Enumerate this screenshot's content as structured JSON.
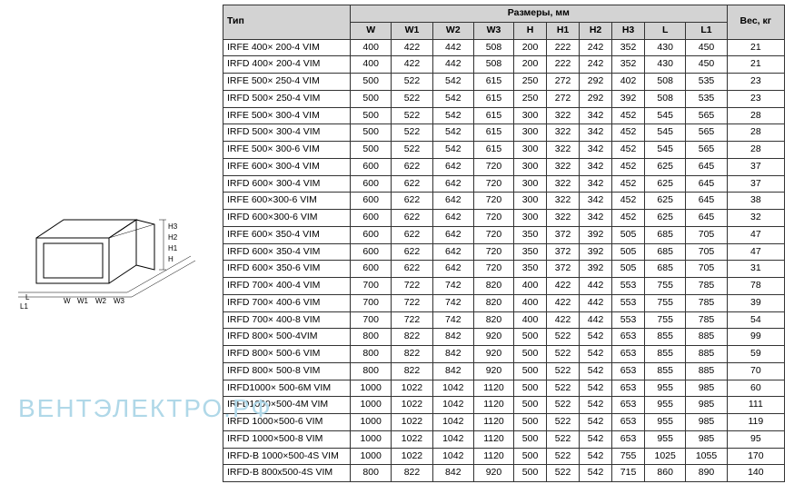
{
  "headers": {
    "type": "Тип",
    "dimensions": "Размеры, мм",
    "weight": "Вес, кг",
    "cols": [
      "W",
      "W1",
      "W2",
      "W3",
      "H",
      "H1",
      "H2",
      "H3",
      "L",
      "L1"
    ]
  },
  "rows": [
    {
      "type": "IRFE 400× 200-4 VIM",
      "v": [
        "400",
        "422",
        "442",
        "508",
        "200",
        "222",
        "242",
        "352",
        "430",
        "450",
        "21"
      ]
    },
    {
      "type": "IRFD 400× 200-4 VIM",
      "v": [
        "400",
        "422",
        "442",
        "508",
        "200",
        "222",
        "242",
        "352",
        "430",
        "450",
        "21"
      ]
    },
    {
      "type": "IRFE 500× 250-4 VIM",
      "v": [
        "500",
        "522",
        "542",
        "615",
        "250",
        "272",
        "292",
        "402",
        "508",
        "535",
        "23"
      ]
    },
    {
      "type": "IRFD 500× 250-4 VIM",
      "v": [
        "500",
        "522",
        "542",
        "615",
        "250",
        "272",
        "292",
        "392",
        "508",
        "535",
        "23"
      ]
    },
    {
      "type": "IRFE 500× 300-4 VIM",
      "v": [
        "500",
        "522",
        "542",
        "615",
        "300",
        "322",
        "342",
        "452",
        "545",
        "565",
        "28"
      ]
    },
    {
      "type": "IRFD 500× 300-4 VIM",
      "v": [
        "500",
        "522",
        "542",
        "615",
        "300",
        "322",
        "342",
        "452",
        "545",
        "565",
        "28"
      ]
    },
    {
      "type": "IRFE 500× 300-6 VIM",
      "v": [
        "500",
        "522",
        "542",
        "615",
        "300",
        "322",
        "342",
        "452",
        "545",
        "565",
        "28"
      ]
    },
    {
      "type": "IRFE 600× 300-4 VIM",
      "v": [
        "600",
        "622",
        "642",
        "720",
        "300",
        "322",
        "342",
        "452",
        "625",
        "645",
        "37"
      ]
    },
    {
      "type": "IRFD 600× 300-4 VIM",
      "v": [
        "600",
        "622",
        "642",
        "720",
        "300",
        "322",
        "342",
        "452",
        "625",
        "645",
        "37"
      ]
    },
    {
      "type": "IRFE 600×300-6 VIM",
      "v": [
        "600",
        "622",
        "642",
        "720",
        "300",
        "322",
        "342",
        "452",
        "625",
        "645",
        "38"
      ]
    },
    {
      "type": "IRFD 600×300-6 VIM",
      "v": [
        "600",
        "622",
        "642",
        "720",
        "300",
        "322",
        "342",
        "452",
        "625",
        "645",
        "32"
      ]
    },
    {
      "type": "IRFE 600× 350-4 VIM",
      "v": [
        "600",
        "622",
        "642",
        "720",
        "350",
        "372",
        "392",
        "505",
        "685",
        "705",
        "47"
      ]
    },
    {
      "type": "IRFD 600× 350-4 VIM",
      "v": [
        "600",
        "622",
        "642",
        "720",
        "350",
        "372",
        "392",
        "505",
        "685",
        "705",
        "47"
      ]
    },
    {
      "type": "IRFD 600× 350-6 VIM",
      "v": [
        "600",
        "622",
        "642",
        "720",
        "350",
        "372",
        "392",
        "505",
        "685",
        "705",
        "31"
      ]
    },
    {
      "type": "IRFD 700× 400-4 VIM",
      "v": [
        "700",
        "722",
        "742",
        "820",
        "400",
        "422",
        "442",
        "553",
        "755",
        "785",
        "78"
      ]
    },
    {
      "type": "IRFD 700× 400-6 VIM",
      "v": [
        "700",
        "722",
        "742",
        "820",
        "400",
        "422",
        "442",
        "553",
        "755",
        "785",
        "39"
      ]
    },
    {
      "type": "IRFD 700× 400-8 VIM",
      "v": [
        "700",
        "722",
        "742",
        "820",
        "400",
        "422",
        "442",
        "553",
        "755",
        "785",
        "54"
      ]
    },
    {
      "type": "IRFD 800× 500-4VIM",
      "v": [
        "800",
        "822",
        "842",
        "920",
        "500",
        "522",
        "542",
        "653",
        "855",
        "885",
        "99"
      ]
    },
    {
      "type": "IRFD 800× 500-6 VIM",
      "v": [
        "800",
        "822",
        "842",
        "920",
        "500",
        "522",
        "542",
        "653",
        "855",
        "885",
        "59"
      ]
    },
    {
      "type": "IRFD 800× 500-8 VIM",
      "v": [
        "800",
        "822",
        "842",
        "920",
        "500",
        "522",
        "542",
        "653",
        "855",
        "885",
        "70"
      ]
    },
    {
      "type": "IRFD1000× 500-6M VIM",
      "v": [
        "1000",
        "1022",
        "1042",
        "1120",
        "500",
        "522",
        "542",
        "653",
        "955",
        "985",
        "60"
      ]
    },
    {
      "type": "IRFD1000×500-4M VIM",
      "v": [
        "1000",
        "1022",
        "1042",
        "1120",
        "500",
        "522",
        "542",
        "653",
        "955",
        "985",
        "111"
      ]
    },
    {
      "type": "IRFD 1000×500-6 VIM",
      "v": [
        "1000",
        "1022",
        "1042",
        "1120",
        "500",
        "522",
        "542",
        "653",
        "955",
        "985",
        "119"
      ]
    },
    {
      "type": "IRFD 1000×500-8 VIM",
      "v": [
        "1000",
        "1022",
        "1042",
        "1120",
        "500",
        "522",
        "542",
        "653",
        "955",
        "985",
        "95"
      ]
    },
    {
      "type": "IRFD-B 1000×500-4S VIM",
      "v": [
        "1000",
        "1022",
        "1042",
        "1120",
        "500",
        "522",
        "542",
        "755",
        "1025",
        "1055",
        "170"
      ]
    },
    {
      "type": "IRFD-B 800x500-4S VIM",
      "v": [
        "800",
        "822",
        "842",
        "920",
        "500",
        "522",
        "542",
        "715",
        "860",
        "890",
        "140"
      ]
    }
  ],
  "watermark": "ВЕНТЭЛЕКТРО.РФ",
  "colors": {
    "header_bg": "#d3d3d3",
    "border": "#333333",
    "watermark": "#b0d8e8"
  },
  "diagram_labels": [
    "W",
    "W1",
    "W2",
    "W3",
    "H",
    "H1",
    "H2",
    "H3",
    "L",
    "L1"
  ]
}
